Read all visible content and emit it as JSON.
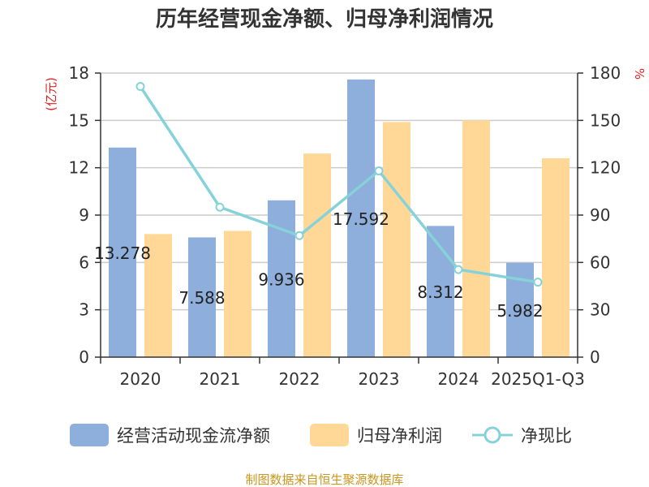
{
  "chart_data": {
    "type": "bar",
    "title": "历年经营现金净额、归母净利润情况",
    "categories": [
      "2020",
      "2021",
      "2022",
      "2023",
      "2024",
      "2025Q1-Q3"
    ],
    "series": [
      {
        "name": "经营活动现金流净额",
        "kind": "bar",
        "axis": "left",
        "color": "#8eaedb",
        "values": [
          13.278,
          7.588,
          9.936,
          17.592,
          8.312,
          5.982
        ],
        "labels": [
          "13.278",
          "7.588",
          "9.936",
          "17.592",
          "8.312",
          "5.982"
        ]
      },
      {
        "name": "归母净利润",
        "kind": "bar",
        "axis": "left",
        "color": "#ffd898",
        "values": [
          7.8,
          8.0,
          12.9,
          14.9,
          15.0,
          12.6
        ]
      },
      {
        "name": "净现比",
        "kind": "line",
        "axis": "right",
        "color": "#85d2d8",
        "values": [
          171.5,
          95.0,
          77.0,
          118.0,
          55.5,
          47.5
        ]
      }
    ],
    "y_left": {
      "label": "(亿元)",
      "min": 0,
      "max": 18,
      "ticks": [
        "0",
        "3",
        "6",
        "9",
        "12",
        "15",
        "18"
      ]
    },
    "y_right": {
      "label": "%",
      "min": 0,
      "max": 180,
      "ticks": [
        "0",
        "30",
        "60",
        "90",
        "120",
        "150",
        "180"
      ]
    },
    "grid": true,
    "legend_position": "bottom"
  },
  "source": "制图数据来自恒生聚源数据库"
}
